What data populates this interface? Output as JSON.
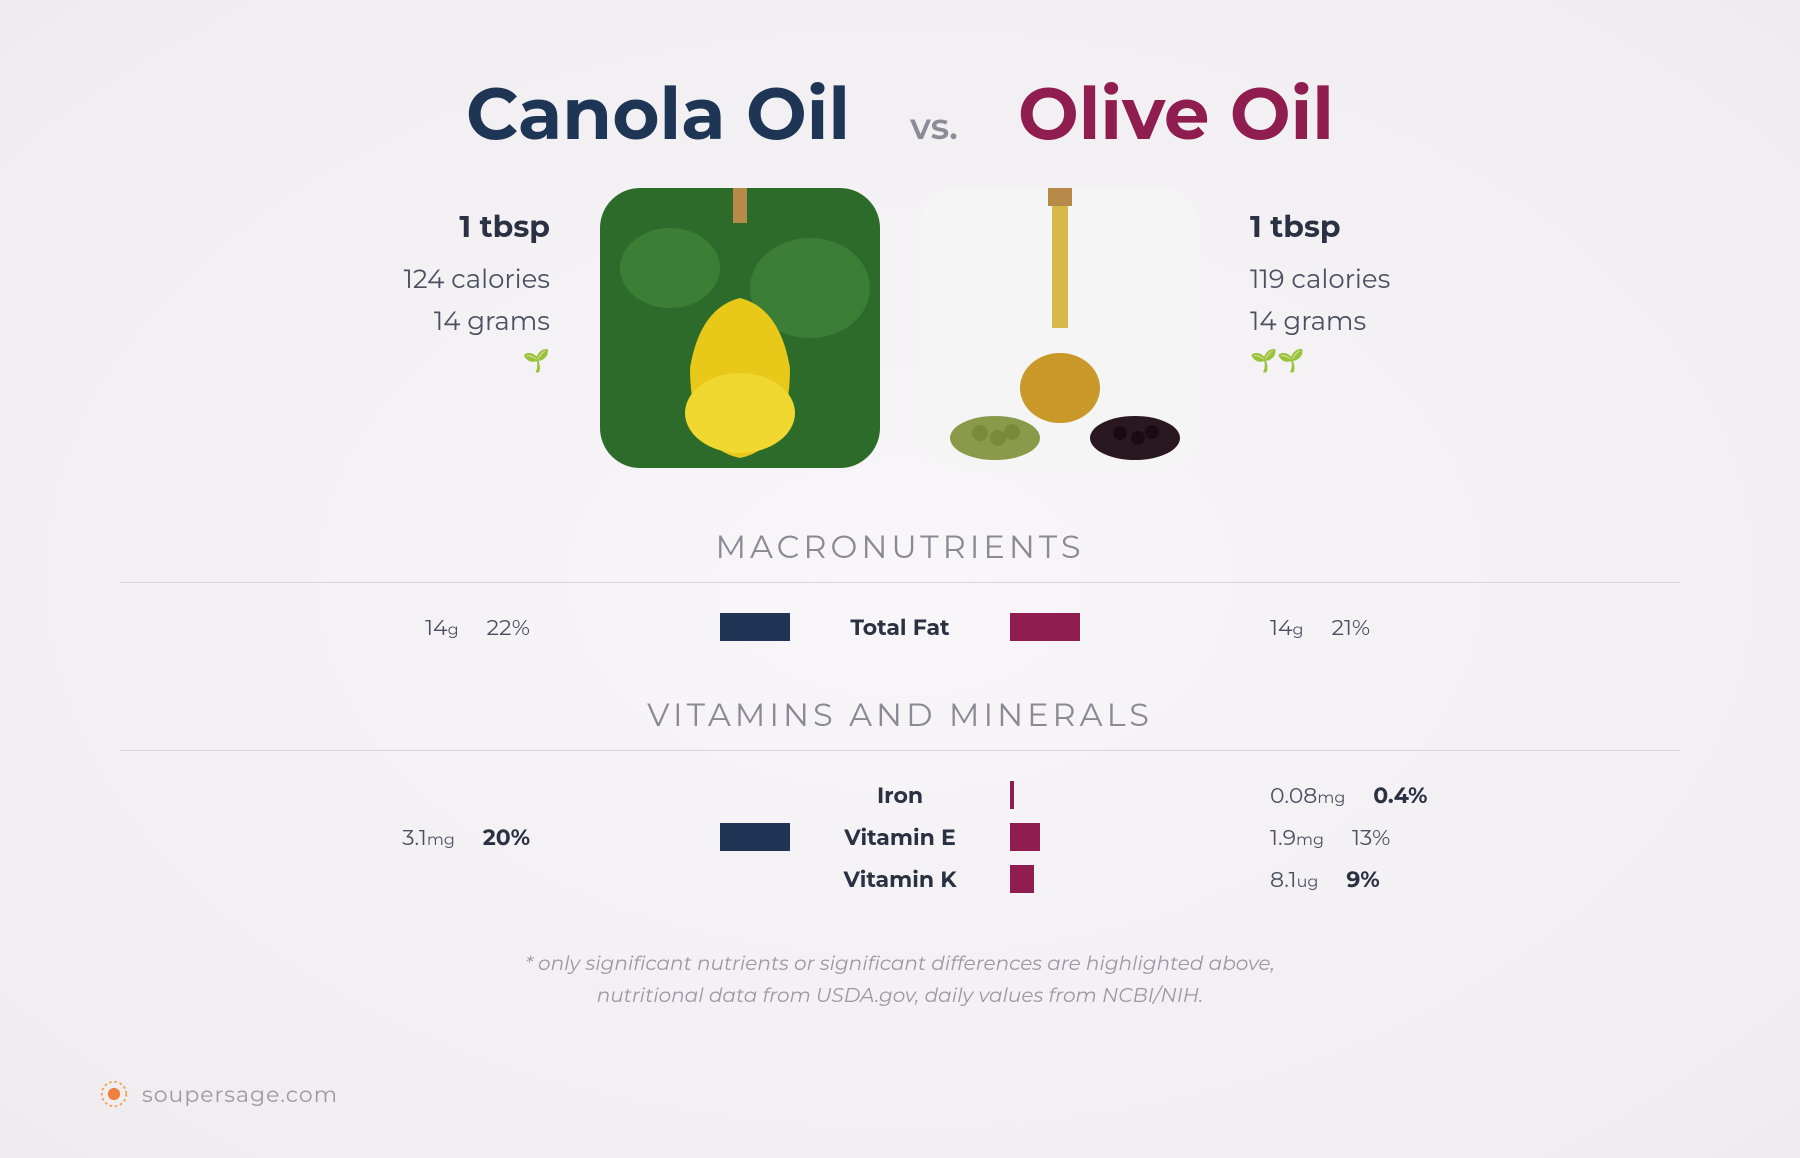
{
  "colors": {
    "left_title": "#1e3556",
    "right_title": "#8f1d4f",
    "left_bar": "#1e3556",
    "right_bar": "#8f1d4f",
    "vs": "#8c8c98",
    "section": "#8a8a95",
    "text": "#4a5060",
    "divider": "#d8d5d8"
  },
  "left": {
    "title": "Canola Oil",
    "serving": "1 tbsp",
    "calories": "124 calories",
    "grams": "14 grams",
    "leaves": 1
  },
  "right": {
    "title": "Olive Oil",
    "serving": "1 tbsp",
    "calories": "119 calories",
    "grams": "14 grams",
    "leaves": 2
  },
  "vs": "vs.",
  "sections": {
    "macro": "MACRONUTRIENTS",
    "vit": "VITAMINS AND MINERALS"
  },
  "macro_rows": [
    {
      "name": "Total Fat",
      "l_amt": "14",
      "l_unit": "g",
      "l_pct": "22%",
      "l_bold": false,
      "l_bar": 70,
      "r_amt": "14",
      "r_unit": "g",
      "r_pct": "21%",
      "r_bold": false,
      "r_bar": 70
    }
  ],
  "vit_rows": [
    {
      "name": "Iron",
      "l_amt": "",
      "l_unit": "",
      "l_pct": "",
      "l_bold": false,
      "l_bar": 0,
      "r_amt": "0.08",
      "r_unit": "mg",
      "r_pct": "0.4%",
      "r_bold": true,
      "r_bar": 4
    },
    {
      "name": "Vitamin E",
      "l_amt": "3.1",
      "l_unit": "mg",
      "l_pct": "20%",
      "l_bold": true,
      "l_bar": 70,
      "r_amt": "1.9",
      "r_unit": "mg",
      "r_pct": "13%",
      "r_bold": false,
      "r_bar": 30
    },
    {
      "name": "Vitamin K",
      "l_amt": "",
      "l_unit": "",
      "l_pct": "",
      "l_bold": false,
      "l_bar": 0,
      "r_amt": "8.1",
      "r_unit": "ug",
      "r_pct": "9%",
      "r_bold": true,
      "r_bar": 24
    }
  ],
  "footnote_l1": "* only significant nutrients or significant differences are highlighted above,",
  "footnote_l2": "nutritional data from USDA.gov, daily values from NCBI/NIH.",
  "brand": "soupersage.com",
  "bar_max_width": 220
}
